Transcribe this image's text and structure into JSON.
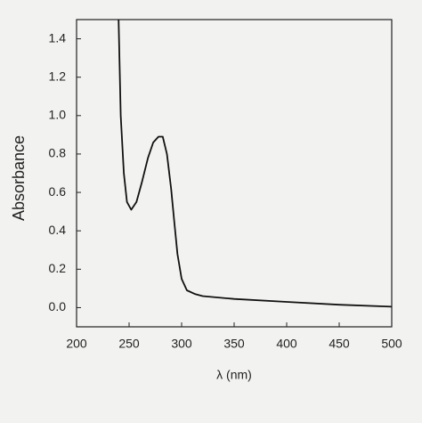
{
  "chart_data": {
    "type": "line",
    "xlabel": "λ (nm)",
    "ylabel": "Absorbance",
    "x": [
      240,
      242,
      245,
      248,
      252,
      257,
      262,
      268,
      273,
      278,
      282,
      286,
      290,
      293,
      296,
      300,
      305,
      313,
      320,
      350,
      400,
      450,
      500
    ],
    "series": [
      {
        "name": "Absorbance",
        "color": "#111111",
        "values": [
          1.5,
          1.0,
          0.7,
          0.55,
          0.51,
          0.55,
          0.65,
          0.78,
          0.86,
          0.89,
          0.89,
          0.8,
          0.62,
          0.45,
          0.28,
          0.15,
          0.09,
          0.07,
          0.06,
          0.045,
          0.03,
          0.015,
          0.005
        ]
      }
    ],
    "xlim": [
      200,
      500
    ],
    "xticks": [
      200,
      250,
      300,
      350,
      400,
      450,
      500
    ],
    "ylim": [
      -0.1,
      1.5
    ],
    "yticks": [
      {
        "value": 0,
        "label": "0.0"
      },
      0.2,
      0.4,
      0.6,
      0.8,
      {
        "value": 1,
        "label": "1.0"
      },
      1.2,
      1.4
    ]
  }
}
